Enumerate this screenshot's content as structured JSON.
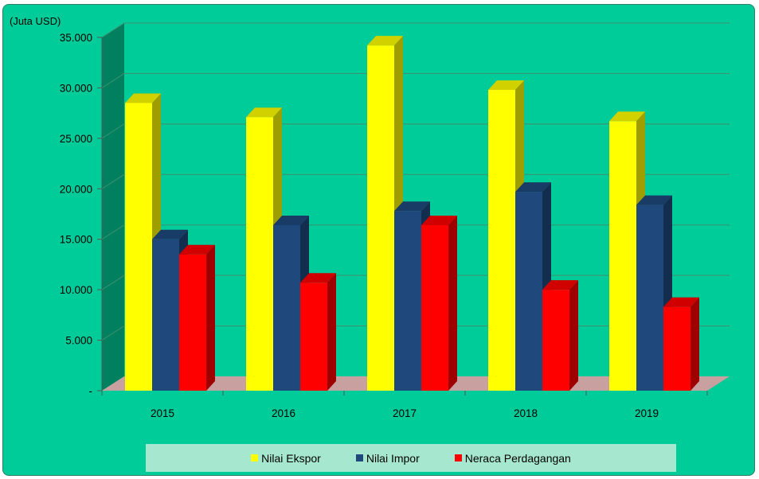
{
  "chart_data": {
    "type": "bar",
    "unit_label": "(Juta USD)",
    "categories": [
      "2015",
      "2016",
      "2017",
      "2018",
      "2019"
    ],
    "series": [
      {
        "name": "Nilai Ekspor",
        "color": "#ffff00",
        "values": [
          28500,
          27100,
          34200,
          29800,
          26700
        ]
      },
      {
        "name": "Nilai Impor",
        "color": "#1f497d",
        "values": [
          15000,
          16400,
          17800,
          19700,
          18400
        ]
      },
      {
        "name": "Neraca Perdagangan",
        "color": "#ff0000",
        "values": [
          13500,
          10700,
          16400,
          10000,
          8300
        ]
      }
    ],
    "y_ticks": [
      "-",
      "5.000",
      "10.000",
      "15.000",
      "20.000",
      "25.000",
      "30.000",
      "35.000"
    ],
    "ylim": [
      0,
      35000
    ],
    "grid": true,
    "legend_position": "bottom"
  }
}
